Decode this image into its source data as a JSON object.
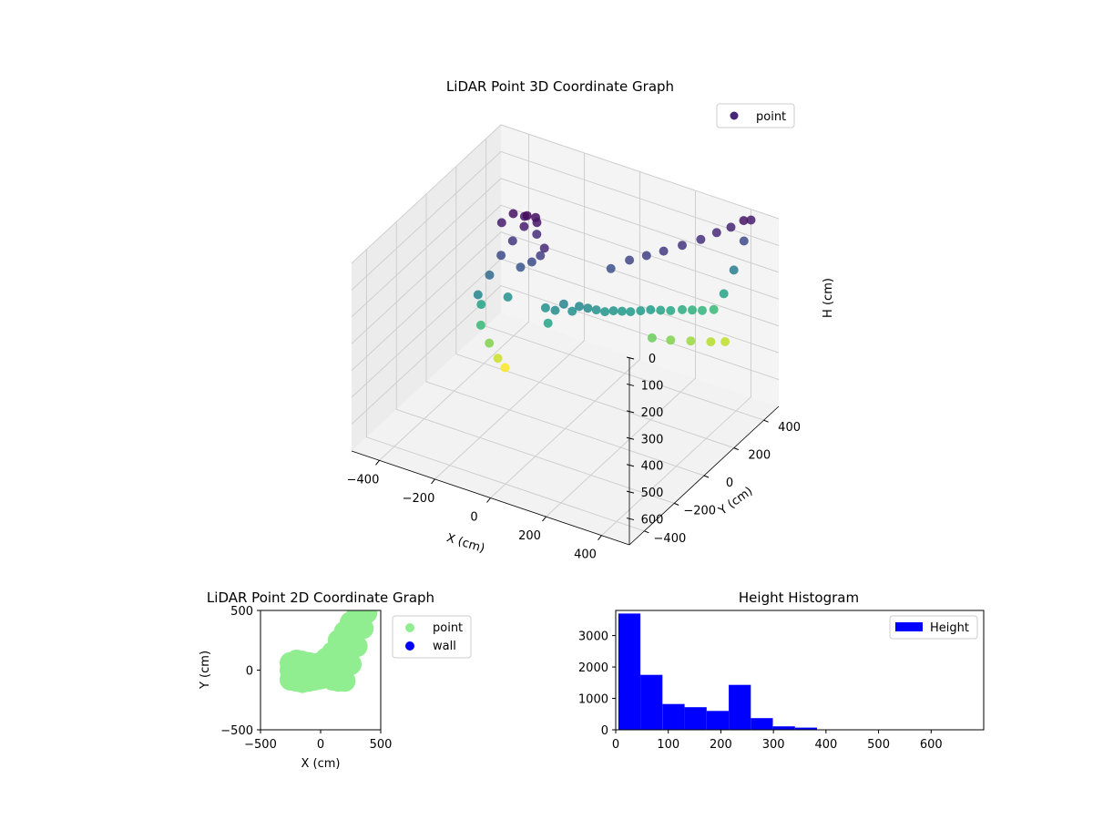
{
  "chart_data": [
    {
      "type": "scatter",
      "title": "LiDAR Point 3D Coordinate Graph",
      "xlabel": "X (cm)",
      "ylabel": "Y (cm)",
      "zlabel": "H (cm)",
      "xlim": [
        -500,
        500
      ],
      "ylim": [
        -500,
        500
      ],
      "zlim": [
        700,
        0
      ],
      "x_ticks": [
        -400,
        -200,
        0,
        200,
        400
      ],
      "y_ticks": [
        -400,
        -200,
        0,
        200,
        400
      ],
      "z_ticks": [
        0,
        100,
        200,
        300,
        400,
        500,
        600
      ],
      "colormap": "viridis",
      "grid": true,
      "legend": {
        "position": "top-right",
        "entries": [
          {
            "label": "point",
            "color": "#482575"
          }
        ]
      },
      "series": [
        {
          "name": "point",
          "points": [
            [
              -260,
              -100,
              240
            ],
            [
              -240,
              -60,
              180
            ],
            [
              -220,
              -20,
              120
            ],
            [
              -200,
              20,
              80
            ],
            [
              -180,
              60,
              40
            ],
            [
              -160,
              100,
              20
            ],
            [
              -250,
              40,
              40
            ],
            [
              -230,
              80,
              20
            ],
            [
              -200,
              100,
              30
            ],
            [
              -180,
              80,
              10
            ],
            [
              -150,
              90,
              30
            ],
            [
              -140,
              70,
              60
            ],
            [
              -270,
              -60,
              300
            ],
            [
              -250,
              -100,
              350
            ],
            [
              -230,
              -80,
              420
            ],
            [
              -210,
              -60,
              480
            ],
            [
              -195,
              -40,
              520
            ],
            [
              -190,
              -30,
              260
            ],
            [
              -150,
              -20,
              140
            ],
            [
              -120,
              0,
              120
            ],
            [
              -100,
              20,
              100
            ],
            [
              -80,
              10,
              60
            ],
            [
              -60,
              -20,
              260
            ],
            [
              -40,
              -40,
              300
            ],
            [
              -20,
              -30,
              250
            ],
            [
              0,
              -10,
              230
            ],
            [
              20,
              10,
              260
            ],
            [
              40,
              20,
              240
            ],
            [
              60,
              40,
              250
            ],
            [
              80,
              60,
              260
            ],
            [
              100,
              80,
              270
            ],
            [
              120,
              100,
              270
            ],
            [
              140,
              120,
              275
            ],
            [
              160,
              140,
              280
            ],
            [
              180,
              170,
              285
            ],
            [
              200,
              200,
              290
            ],
            [
              220,
              230,
              300
            ],
            [
              240,
              260,
              310
            ],
            [
              260,
              300,
              320
            ],
            [
              280,
              330,
              330
            ],
            [
              300,
              360,
              340
            ],
            [
              320,
              400,
              350
            ],
            [
              340,
              430,
              300
            ],
            [
              360,
              460,
              220
            ],
            [
              380,
              490,
              120
            ],
            [
              400,
              500,
              40
            ],
            [
              100,
              120,
              130
            ],
            [
              140,
              170,
              110
            ],
            [
              180,
              210,
              100
            ],
            [
              220,
              250,
              90
            ],
            [
              260,
              300,
              80
            ],
            [
              300,
              350,
              70
            ],
            [
              330,
              400,
              60
            ],
            [
              360,
              440,
              50
            ],
            [
              390,
              470,
              30
            ],
            [
              200,
              210,
              400
            ],
            [
              240,
              260,
              420
            ],
            [
              280,
              320,
              440
            ],
            [
              320,
              380,
              460
            ],
            [
              350,
              420,
              470
            ]
          ]
        }
      ]
    },
    {
      "type": "scatter",
      "title": "LiDAR Point 2D Coordinate Graph",
      "xlabel": "X (cm)",
      "ylabel": "Y (cm)",
      "xlim": [
        -500,
        500
      ],
      "ylim": [
        -500,
        500
      ],
      "x_ticks": [
        -500,
        0,
        500
      ],
      "y_ticks": [
        -500,
        0,
        500
      ],
      "legend": {
        "position": "outside-right",
        "entries": [
          {
            "label": "point",
            "color": "#90ee90"
          },
          {
            "label": "wall",
            "color": "#0000ff"
          }
        ]
      },
      "series": [
        {
          "name": "point",
          "color": "#90ee90",
          "points": [
            [
              -250,
              -80
            ],
            [
              -250,
              0
            ],
            [
              -250,
              60
            ],
            [
              -200,
              -90
            ],
            [
              -200,
              80
            ],
            [
              -150,
              -100
            ],
            [
              -150,
              70
            ],
            [
              -100,
              -90
            ],
            [
              -100,
              60
            ],
            [
              -50,
              -80
            ],
            [
              -50,
              50
            ],
            [
              0,
              -70
            ],
            [
              0,
              60
            ],
            [
              50,
              -60
            ],
            [
              50,
              100
            ],
            [
              100,
              -80
            ],
            [
              100,
              150
            ],
            [
              150,
              -90
            ],
            [
              150,
              250
            ],
            [
              200,
              -90
            ],
            [
              200,
              320
            ],
            [
              250,
              50
            ],
            [
              250,
              400
            ],
            [
              300,
              200
            ],
            [
              300,
              450
            ],
            [
              350,
              350
            ],
            [
              350,
              500
            ],
            [
              380,
              480
            ],
            [
              -220,
              -40
            ],
            [
              -150,
              0
            ],
            [
              -80,
              10
            ],
            [
              20,
              0
            ],
            [
              120,
              50
            ],
            [
              180,
              150
            ],
            [
              220,
              250
            ],
            [
              280,
              380
            ]
          ]
        },
        {
          "name": "wall",
          "color": "#0000ff",
          "points": []
        }
      ]
    },
    {
      "type": "bar",
      "title": "Height Histogram",
      "xlim": [
        0,
        700
      ],
      "ylim": [
        0,
        3800
      ],
      "x_ticks": [
        0,
        100,
        200,
        300,
        400,
        500,
        600
      ],
      "y_ticks": [
        0,
        1000,
        2000,
        3000
      ],
      "legend": {
        "position": "top-right",
        "entries": [
          {
            "label": "Height",
            "color": "#0000ff"
          }
        ]
      },
      "series": [
        {
          "name": "Height",
          "color": "#0000ff",
          "bin_edges": [
            5,
            47,
            89,
            131,
            173,
            215,
            257,
            299,
            341,
            383,
            425,
            467,
            509,
            551,
            593,
            635,
            677
          ],
          "counts": [
            3700,
            1750,
            820,
            720,
            600,
            1430,
            370,
            110,
            70,
            15,
            5,
            3,
            2,
            1,
            1,
            1
          ]
        }
      ]
    }
  ]
}
